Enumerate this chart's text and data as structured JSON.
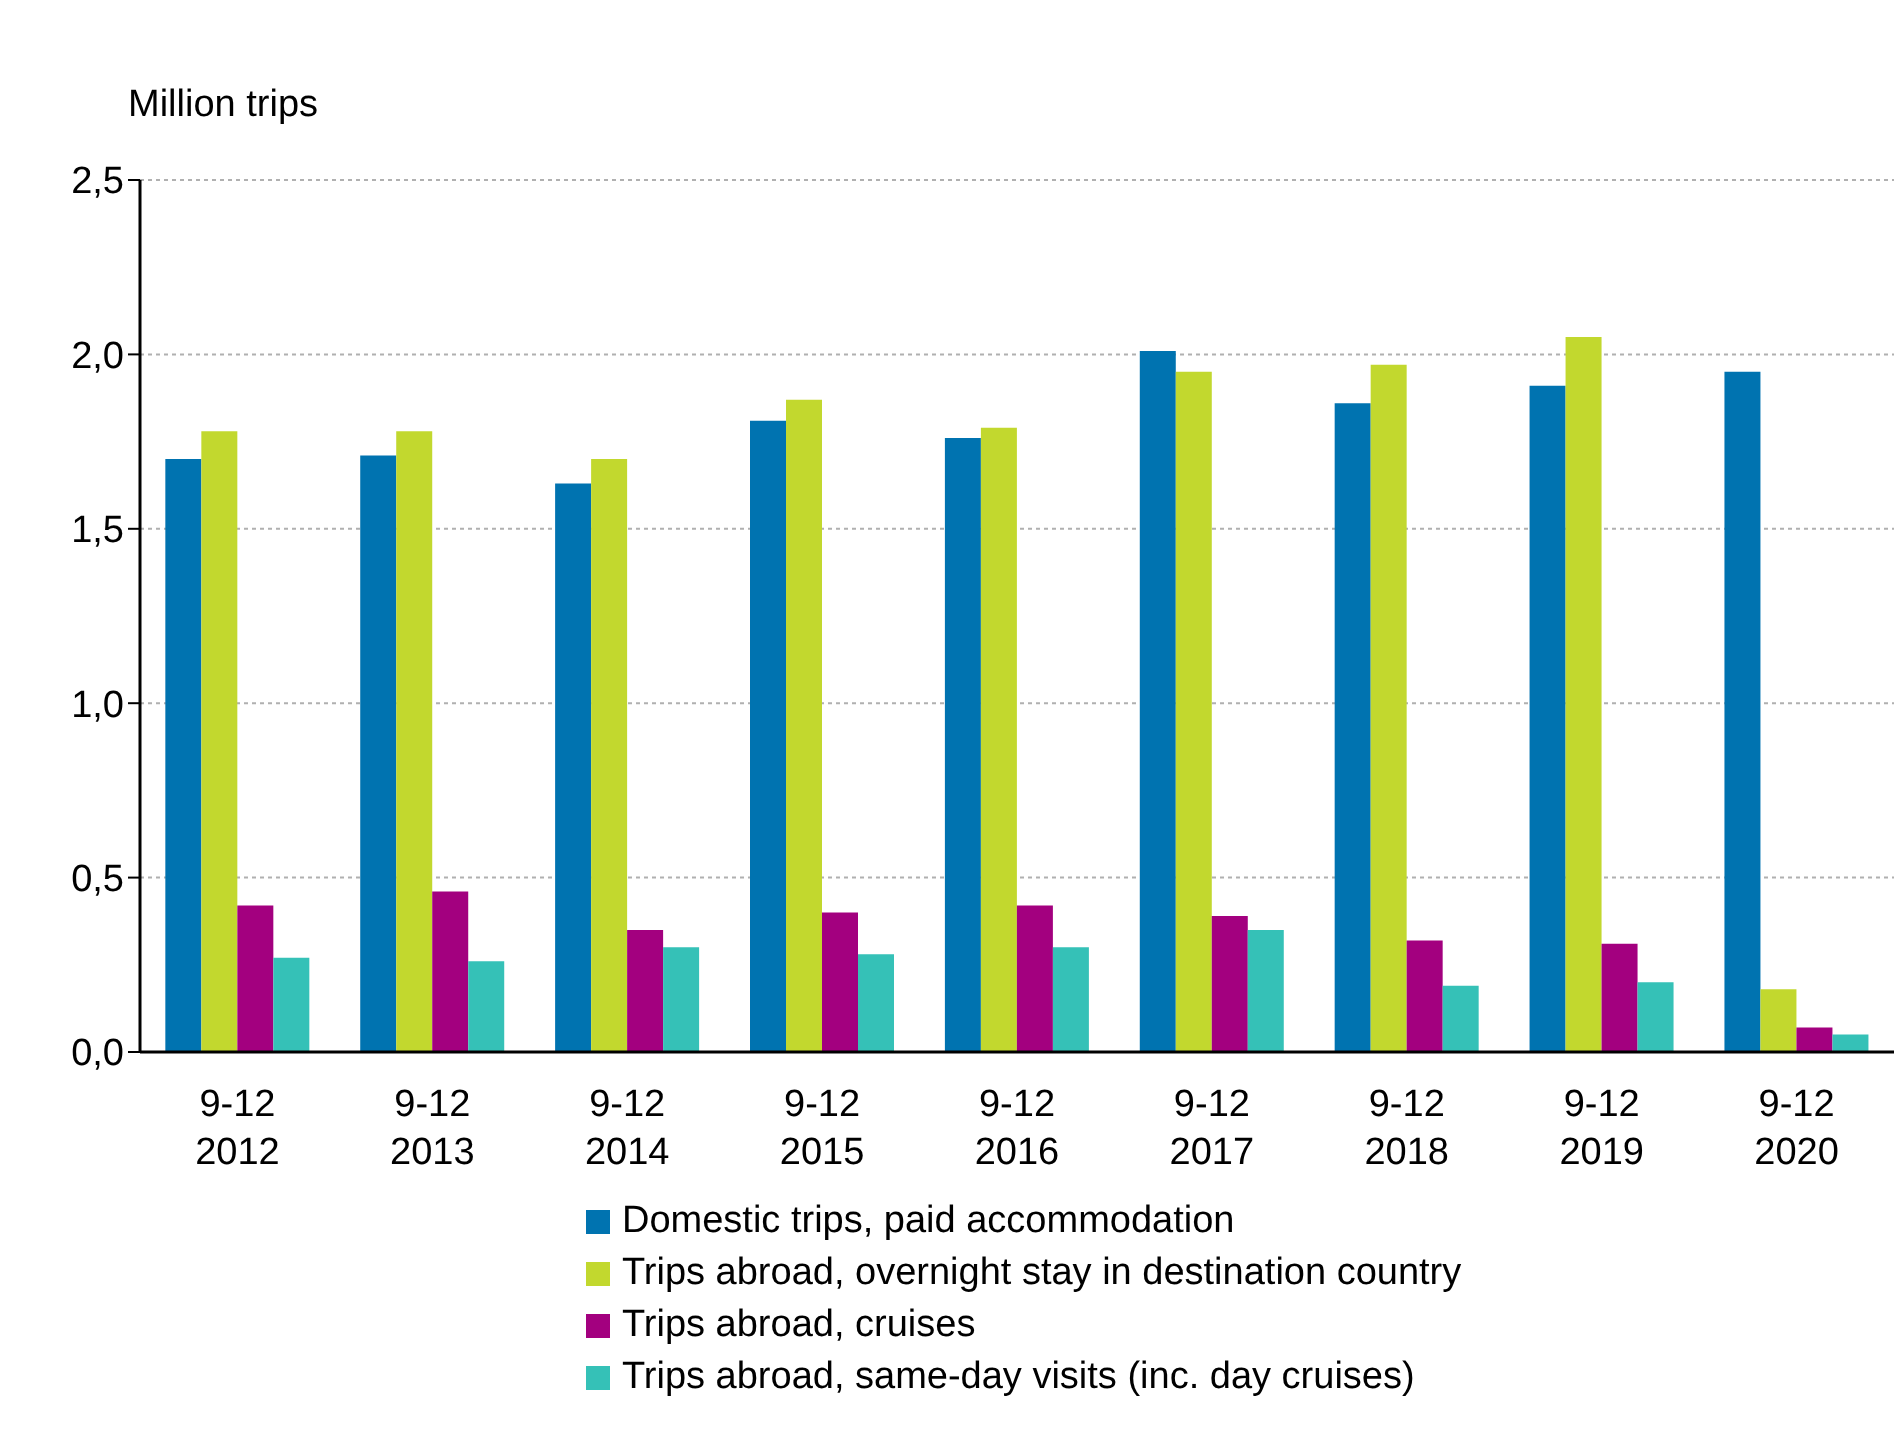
{
  "chart_data": {
    "type": "bar",
    "ylabel": "Million trips",
    "categories": [
      "9-12 2012",
      "9-12 2013",
      "9-12 2014",
      "9-12 2015",
      "9-12 2016",
      "9-12 2017",
      "9-12 2018",
      "9-12 2019",
      "9-12 2020"
    ],
    "series": [
      {
        "name": "Domestic trips, paid accommodation",
        "color": "#0073b0",
        "values": [
          1.7,
          1.71,
          1.63,
          1.81,
          1.76,
          2.01,
          1.86,
          1.91,
          1.95
        ]
      },
      {
        "name": "Trips abroad, overnight stay in destination country",
        "color": "#c2d82e",
        "values": [
          1.78,
          1.78,
          1.7,
          1.87,
          1.79,
          1.95,
          1.97,
          2.05,
          0.18
        ]
      },
      {
        "name": "Trips abroad, cruises",
        "color": "#a3007f",
        "values": [
          0.42,
          0.46,
          0.35,
          0.4,
          0.42,
          0.39,
          0.32,
          0.31,
          0.07
        ]
      },
      {
        "name": "Trips abroad, same-day visits (inc. day cruises)",
        "color": "#35c1b7",
        "values": [
          0.27,
          0.26,
          0.3,
          0.28,
          0.3,
          0.35,
          0.19,
          0.2,
          0.05
        ]
      }
    ],
    "ylim": [
      0,
      2.5
    ],
    "yticks": [
      {
        "value": 0,
        "label": "0,0"
      },
      {
        "value": 0.5,
        "label": "0,5"
      },
      {
        "value": 1,
        "label": "1,0"
      },
      {
        "value": 1.5,
        "label": "1,5"
      },
      {
        "value": 2,
        "label": "2,0"
      },
      {
        "value": 2.5,
        "label": "2,5"
      }
    ],
    "grid": "y",
    "legend": "bottom"
  }
}
